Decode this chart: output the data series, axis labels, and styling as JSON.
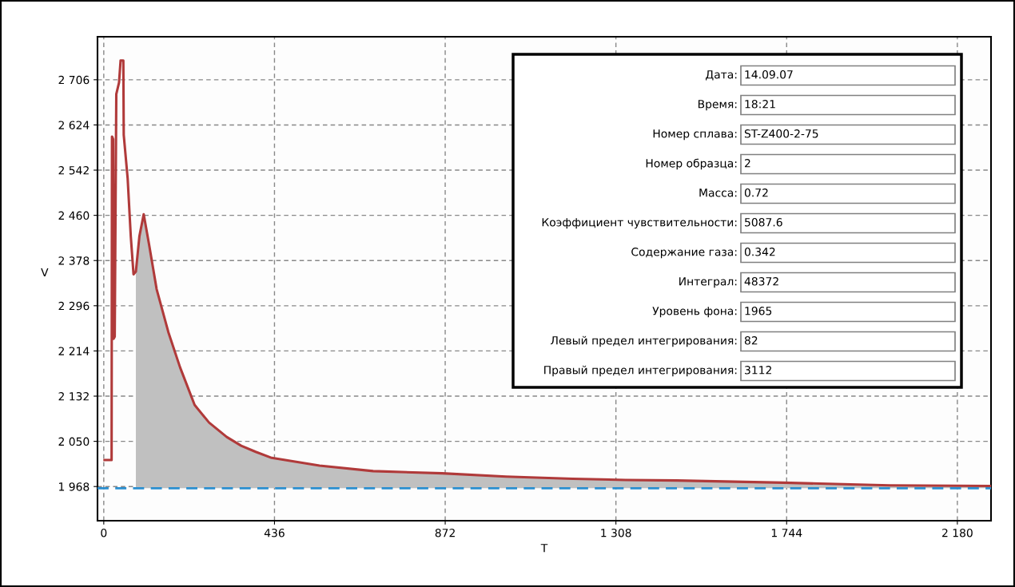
{
  "chart_data": {
    "type": "line",
    "xlabel": "T",
    "ylabel": "V",
    "xlim": [
      -16,
      2266
    ],
    "ylim": [
      1906,
      2784
    ],
    "xticks": [
      0,
      436,
      872,
      {
        "value": 1308,
        "label": "1 308"
      },
      {
        "value": 1744,
        "label": "1 744"
      },
      {
        "value": 2180,
        "label": "2 180"
      }
    ],
    "yticks": [
      {
        "value": 1968,
        "label": "1 968"
      },
      {
        "value": 2050,
        "label": "2 050"
      },
      {
        "value": 2132,
        "label": "2 132"
      },
      {
        "value": 2214,
        "label": "2 214"
      },
      {
        "value": 2296,
        "label": "2 296"
      },
      {
        "value": 2378,
        "label": "2 378"
      },
      {
        "value": 2460,
        "label": "2 460"
      },
      {
        "value": 2542,
        "label": "2 542"
      },
      {
        "value": 2624,
        "label": "2 624"
      },
      {
        "value": 2706,
        "label": "2 706"
      }
    ],
    "grid": true,
    "legend": false,
    "series": [
      {
        "type": "area",
        "color": "#c0c0c0",
        "x": [
          82,
          91,
          102,
          116,
          135,
          165,
          195,
          232,
          269,
          314,
          351,
          388,
          429,
          551,
          688,
          864,
          1027,
          1198,
          1333,
          1463,
          1735,
          2007,
          2266
        ],
        "values": [
          2358,
          2422,
          2462,
          2406,
          2326,
          2248,
          2184,
          2116,
          2084,
          2058,
          2042,
          2031,
          2020,
          2006,
          1996,
          1992,
          1986,
          1982,
          1980,
          1979,
          1975,
          1970,
          1969
        ]
      },
      {
        "color": "#b03a3a",
        "x": [
          2,
          20,
          21,
          24,
          25,
          28,
          32,
          39,
          43,
          50,
          51,
          61,
          69,
          76,
          82,
          91,
          102,
          116,
          135,
          165,
          195,
          232,
          269,
          314,
          351,
          388,
          429,
          551,
          688,
          864,
          1027,
          1198,
          1333,
          1463,
          1735,
          2007,
          2266
        ],
        "values": [
          2016,
          2016,
          2603,
          2598,
          2236,
          2240,
          2680,
          2701,
          2741,
          2741,
          2606,
          2527,
          2422,
          2353,
          2358,
          2422,
          2462,
          2406,
          2326,
          2248,
          2184,
          2116,
          2084,
          2058,
          2042,
          2031,
          2020,
          2006,
          1996,
          1992,
          1986,
          1982,
          1980,
          1979,
          1975,
          1970,
          1969
        ]
      }
    ],
    "ref_lines": [
      {
        "axis": "y",
        "value": 1965,
        "color": "#2a8fd0",
        "line_style": "dashed"
      }
    ],
    "annotations": [
      "Дата:",
      "14.09.07",
      "Время:",
      "18:21",
      "Номер сплава:",
      "ST-Z400-2-75",
      "Номер образца:",
      "2",
      "Масса:",
      "0.72",
      "Коэффициент чувствительности:",
      "5087.6",
      "Содержание газа:",
      "0.342",
      "Интеграл:",
      "48372",
      "Уровень фона:",
      "1965",
      "Левый предел интегрирования:",
      "82",
      "Правый предел интегрирования:",
      "3112"
    ]
  }
}
